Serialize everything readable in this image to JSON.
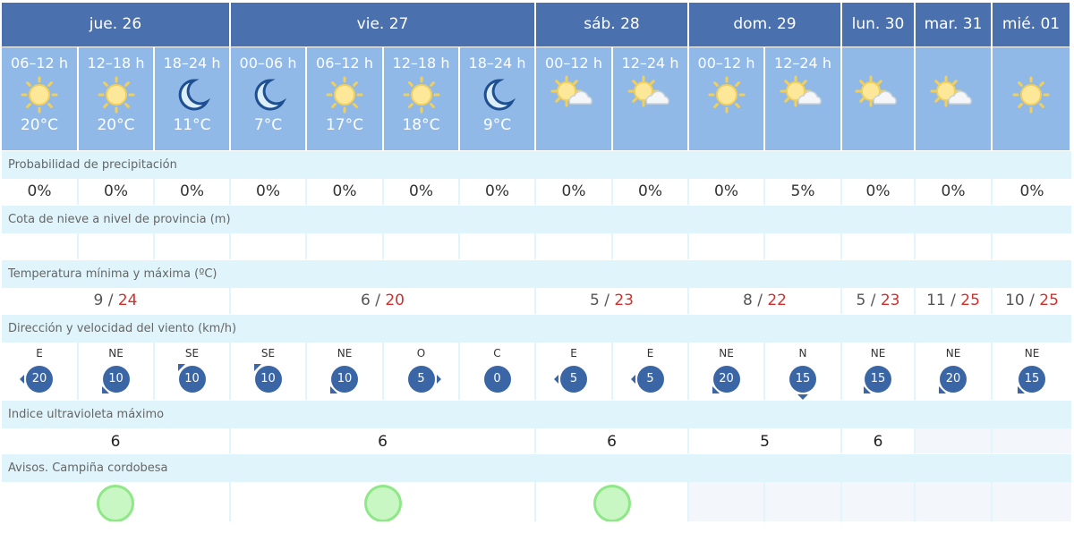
{
  "days": [
    {
      "label": "jue. 26",
      "span": 3,
      "temp_min": "9",
      "temp_max": "24",
      "uv": "6",
      "uv_color": "#e0a020",
      "aviso": "green"
    },
    {
      "label": "vie. 27",
      "span": 4,
      "temp_min": "6",
      "temp_max": "20",
      "uv": "6",
      "uv_color": "#e0a020",
      "aviso": "green"
    },
    {
      "label": "sáb. 28",
      "span": 2,
      "temp_min": "5",
      "temp_max": "23",
      "uv": "6",
      "uv_color": "#e0a020",
      "aviso": "green"
    },
    {
      "label": "dom. 29",
      "span": 2,
      "temp_min": "8",
      "temp_max": "22",
      "uv": "5",
      "uv_color": "#f0e020",
      "aviso": ""
    },
    {
      "label": "lun. 30",
      "span": 1,
      "temp_min": "5",
      "temp_max": "23",
      "uv": "6",
      "uv_color": "#e0a020",
      "aviso": ""
    },
    {
      "label": "mar. 31",
      "span": 1,
      "temp_min": "11",
      "temp_max": "25",
      "uv": "",
      "aviso": ""
    },
    {
      "label": "mié. 01",
      "span": 1,
      "temp_min": "10",
      "temp_max": "25",
      "uv": "",
      "aviso": ""
    }
  ],
  "periods": [
    {
      "time": "06–12 h",
      "icon": "sun-icon",
      "temp": "20°C",
      "precip": "0%",
      "wind_dir": "E",
      "wind_speed": "20"
    },
    {
      "time": "12–18 h",
      "icon": "sun-icon",
      "temp": "20°C",
      "precip": "0%",
      "wind_dir": "NE",
      "wind_speed": "10"
    },
    {
      "time": "18–24 h",
      "icon": "moon-icon",
      "temp": "11°C",
      "precip": "0%",
      "wind_dir": "SE",
      "wind_speed": "10"
    },
    {
      "time": "00–06 h",
      "icon": "moon-icon",
      "temp": "7°C",
      "precip": "0%",
      "wind_dir": "SE",
      "wind_speed": "10"
    },
    {
      "time": "06–12 h",
      "icon": "sun-icon",
      "temp": "17°C",
      "precip": "0%",
      "wind_dir": "NE",
      "wind_speed": "10"
    },
    {
      "time": "12–18 h",
      "icon": "sun-icon",
      "temp": "18°C",
      "precip": "0%",
      "wind_dir": "O",
      "wind_speed": "5"
    },
    {
      "time": "18–24 h",
      "icon": "moon-icon",
      "temp": "9°C",
      "precip": "0%",
      "wind_dir": "C",
      "wind_speed": "0"
    },
    {
      "time": "00–12 h",
      "icon": "sun-cloud-icon",
      "temp": "",
      "precip": "0%",
      "wind_dir": "E",
      "wind_speed": "5"
    },
    {
      "time": "12–24 h",
      "icon": "sun-cloud-icon",
      "temp": "",
      "precip": "0%",
      "wind_dir": "E",
      "wind_speed": "5"
    },
    {
      "time": "00–12 h",
      "icon": "sun-icon",
      "temp": "",
      "precip": "0%",
      "wind_dir": "NE",
      "wind_speed": "20"
    },
    {
      "time": "12–24 h",
      "icon": "sun-cloud-icon",
      "temp": "",
      "precip": "5%",
      "wind_dir": "N",
      "wind_speed": "15"
    },
    {
      "time": "",
      "icon": "sun-cloud-icon",
      "temp": "",
      "precip": "0%",
      "wind_dir": "NE",
      "wind_speed": "15"
    },
    {
      "time": "",
      "icon": "sun-cloud-icon",
      "temp": "",
      "precip": "0%",
      "wind_dir": "NE",
      "wind_speed": "20"
    },
    {
      "time": "",
      "icon": "sun-icon",
      "temp": "",
      "precip": "0%",
      "wind_dir": "NE",
      "wind_speed": "15"
    }
  ],
  "labels": {
    "precip": "Probabilidad de precipitación",
    "snow": "Cota de nieve a nivel de provincia (m)",
    "temp": "Temperatura mínima y máxima (ºC)",
    "wind": "Dirección y velocidad del viento (km/h)",
    "uv": "Indice ultravioleta máximo",
    "avisos": "Avisos. Campiña cordobesa"
  },
  "colors": {
    "header": "#4a70ad",
    "period": "#91b9e7",
    "label_bg": "#dff4fb",
    "wind_circle": "#3b66a6",
    "temp_max": "#d0302c",
    "aviso_green": "#8fe887"
  }
}
